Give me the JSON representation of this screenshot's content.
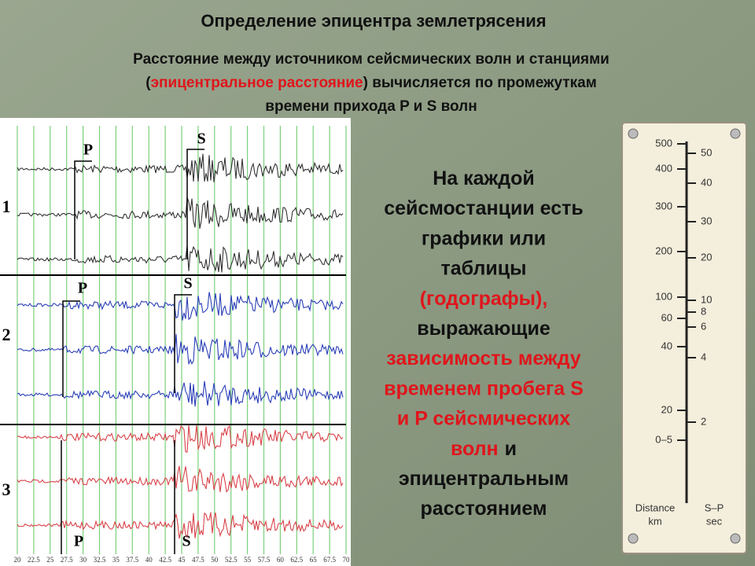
{
  "header": {
    "title": "Определение эпицентра землетрясения",
    "subtitle_line1": "Расстояние между источником сейсмических волн и станциями",
    "subtitle_line2_open": "(",
    "subtitle_line2_highlight": "эпицентральное расстояние",
    "subtitle_line2_rest": ") вычисляется по промежуткам",
    "subtitle_line3": "времени прихода P и S волн"
  },
  "seismogram": {
    "stations": [
      {
        "label": "1",
        "p": "P",
        "s": "S"
      },
      {
        "label": "2",
        "p": "P",
        "s": "S"
      },
      {
        "label": "3",
        "p": "P",
        "s": "S"
      }
    ],
    "time_labels": [
      20,
      22.5,
      25,
      27.5,
      30,
      32.5,
      35,
      37.5,
      40,
      42.5,
      45,
      47.5,
      50,
      52.5,
      55,
      57.5,
      60,
      62.5,
      65,
      67.5,
      70
    ]
  },
  "explanation": {
    "lines": [
      [
        {
          "text": "На каждой",
          "highlight": false
        }
      ],
      [
        {
          "text": "сейсмостанции есть",
          "highlight": false
        }
      ],
      [
        {
          "text": "графики или",
          "highlight": false
        }
      ],
      [
        {
          "text": "таблицы",
          "highlight": false
        }
      ],
      [
        {
          "text": "(годографы),",
          "highlight": true
        }
      ],
      [
        {
          "text": "выражающие",
          "highlight": false
        }
      ],
      [
        {
          "text": "зависимость между",
          "highlight": true
        }
      ],
      [
        {
          "text": "временем пробега S",
          "highlight": true
        }
      ],
      [
        {
          "text": "и P сейсмических",
          "highlight": true
        }
      ],
      [
        {
          "text": "волн",
          "highlight": true
        },
        {
          "text": "и",
          "highlight": false
        }
      ],
      [
        {
          "text": "эпицентральным",
          "highlight": false
        }
      ],
      [
        {
          "text": "расстоянием",
          "highlight": false
        }
      ]
    ]
  },
  "nomogram": {
    "distance_labels": [
      500,
      400,
      300,
      200,
      100,
      60,
      40,
      20,
      "0–5"
    ],
    "sp_labels": [
      50,
      40,
      30,
      20,
      10,
      8,
      6,
      4,
      2
    ],
    "distance_title": [
      "Distance",
      "km"
    ],
    "sp_title": [
      "S–P",
      "sec"
    ]
  }
}
